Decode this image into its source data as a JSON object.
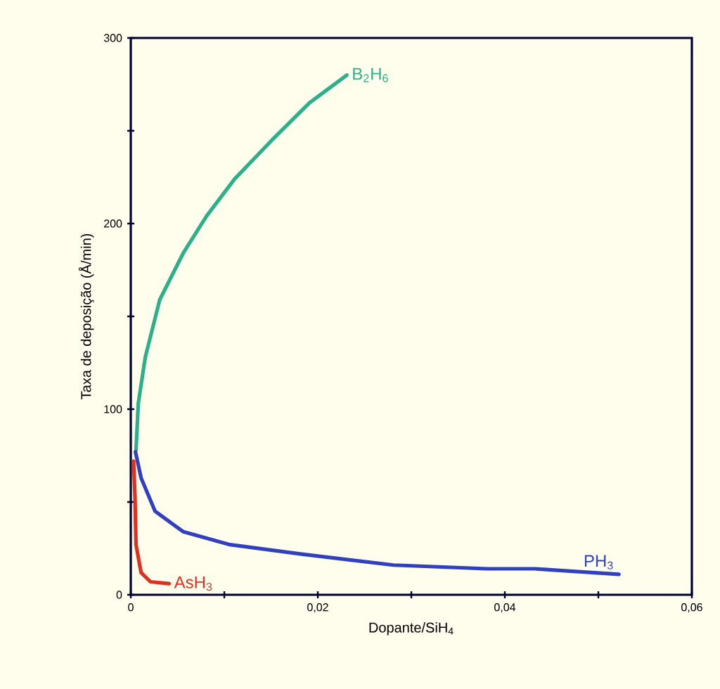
{
  "chart_data": {
    "type": "line",
    "xlabel": "Dopante/SiH$_{4}$",
    "ylabel": "Taxa de deposição (Å/min)",
    "xlim": [
      0,
      0.06
    ],
    "ylim": [
      0,
      300
    ],
    "xticks": [
      {
        "value": 0,
        "label": "0"
      },
      {
        "value": 0.01,
        "label": null
      },
      {
        "value": 0.02,
        "label": "0,02"
      },
      {
        "value": 0.03,
        "label": null
      },
      {
        "value": 0.04,
        "label": "0,04"
      },
      {
        "value": 0.05,
        "label": null
      },
      {
        "value": 0.06,
        "label": "0,06"
      }
    ],
    "yticks": [
      0,
      {
        "value": 50,
        "label": null
      },
      100,
      {
        "value": 150,
        "label": null
      },
      200,
      {
        "value": 250,
        "label": null
      },
      300
    ],
    "series": [
      {
        "name": "B$_{2}$H$_{6}$",
        "color": "#2bb08a",
        "x": [
          0.00056,
          0.0008,
          0.00155,
          0.0031,
          0.0056,
          0.0081,
          0.0111,
          0.0151,
          0.0191,
          0.0231
        ],
        "values": [
          78,
          103,
          128,
          159,
          184,
          204,
          224,
          245,
          265,
          280
        ]
      },
      {
        "name": "PH$_{3}$",
        "color": "#3040c0",
        "x": [
          0.0005,
          0.0011,
          0.0026,
          0.0056,
          0.0106,
          0.0181,
          0.0281,
          0.0381,
          0.0432,
          0.0522
        ],
        "values": [
          77,
          63,
          45,
          34,
          27,
          22,
          16,
          14,
          14,
          11
        ]
      },
      {
        "name": "AsH$_{3}$",
        "color": "#e03020",
        "x": [
          0.0003,
          0.00045,
          0.00056,
          0.0011,
          0.0021,
          0.0041
        ],
        "values": [
          72,
          53,
          27,
          12,
          7,
          6
        ]
      }
    ]
  }
}
